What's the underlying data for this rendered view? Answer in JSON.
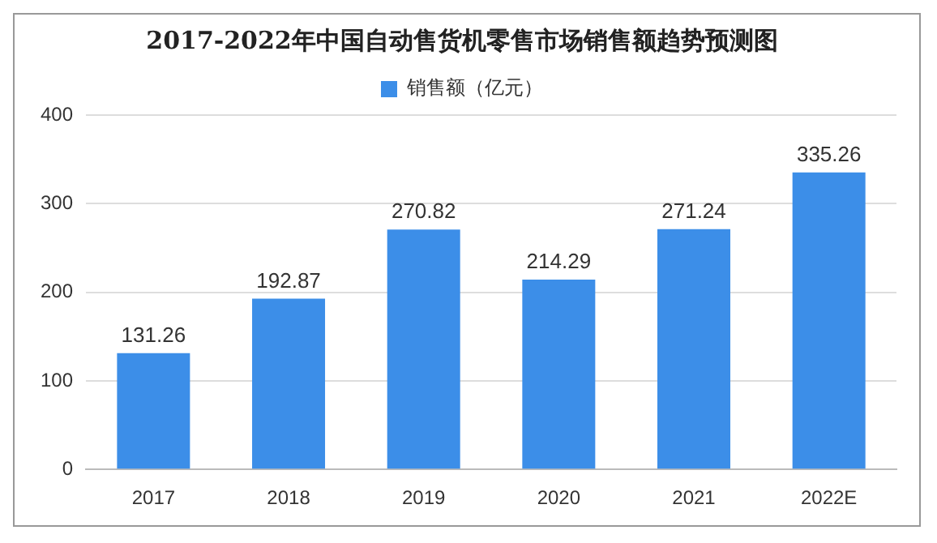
{
  "chart_data": {
    "type": "bar",
    "title": "2017-2022年中国自动售货机零售市场销售额趋势预测图",
    "categories": [
      "2017",
      "2018",
      "2019",
      "2020",
      "2021",
      "2022E"
    ],
    "series": [
      {
        "name": "销售额（亿元）",
        "color": "#3c8ee8",
        "values": [
          131.26,
          192.87,
          270.82,
          214.29,
          271.24,
          335.26
        ]
      }
    ],
    "ylim": [
      0,
      400
    ],
    "yticks": [
      0,
      100,
      200,
      300,
      400
    ],
    "grid": "y",
    "legend": "top",
    "data_labels": true
  }
}
